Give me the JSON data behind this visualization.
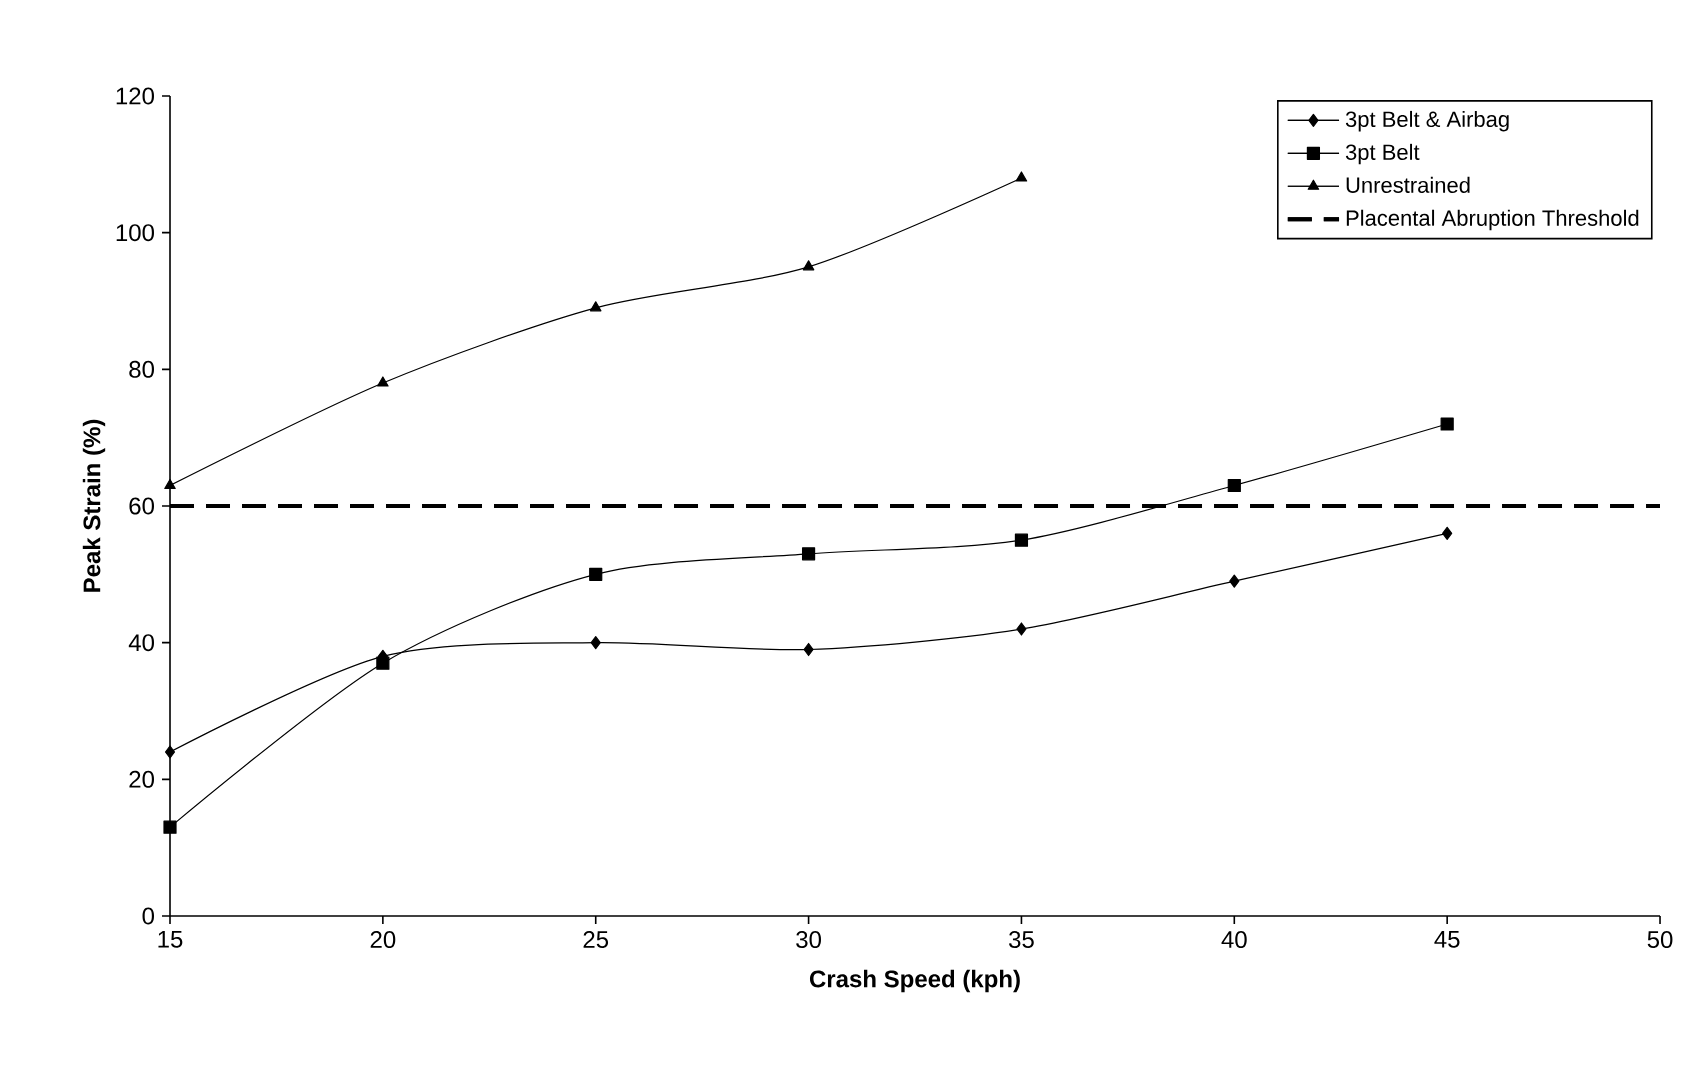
{
  "chart_data": {
    "type": "line",
    "xlabel": "Crash Speed (kph)",
    "ylabel": "Peak Strain (%)",
    "x": [
      15,
      20,
      25,
      30,
      35,
      40,
      45
    ],
    "series": [
      {
        "name": "3pt Belt & Airbag",
        "color": "#000000",
        "marker": "diamond",
        "values": [
          24,
          38,
          40,
          39,
          42,
          49,
          56
        ]
      },
      {
        "name": "3pt Belt",
        "color": "#000000",
        "marker": "square",
        "values": [
          13,
          37,
          50,
          53,
          55,
          63,
          72
        ]
      },
      {
        "name": "Unrestrained",
        "color": "#000000",
        "marker": "triangle",
        "values": [
          63,
          78,
          89,
          95,
          108,
          null,
          null
        ]
      }
    ],
    "ref_lines": [
      {
        "axis": "y",
        "value": 60,
        "label": "Placental Abruption Threshold",
        "color": "#000000",
        "line_style": "dashed"
      }
    ],
    "xlim": [
      15,
      50
    ],
    "xticks": [
      15,
      20,
      25,
      30,
      35,
      40,
      45,
      50
    ],
    "ylim": [
      0,
      120
    ],
    "yticks": [
      0,
      20,
      40,
      60,
      80,
      100,
      120
    ],
    "grid": false,
    "legend": "top right",
    "line_style": "solid"
  }
}
